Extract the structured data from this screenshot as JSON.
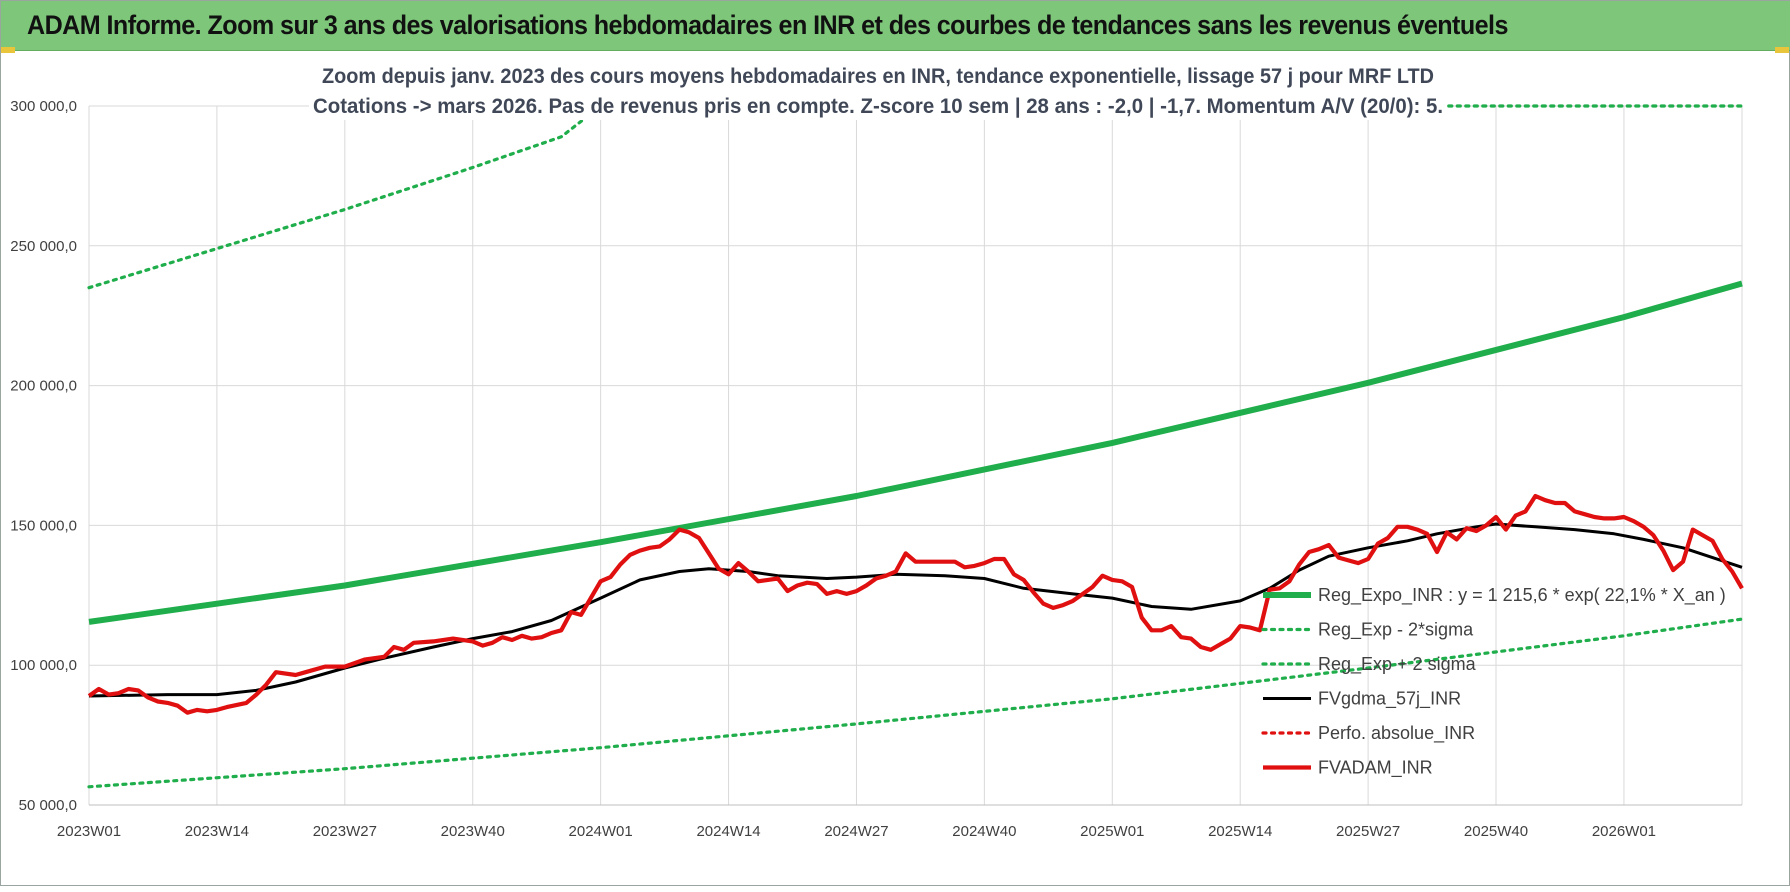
{
  "banner": {
    "title": "ADAM Informe. Zoom sur 3 ans des valorisations hebdomadaires en INR et des courbes de tendances sans les revenus éventuels"
  },
  "colors": {
    "banner_bg": "#7ec77a",
    "reg_expo": "#1fae4b",
    "sigma": "#1fae4b",
    "fvgdma": "#000000",
    "perfo": "#e01010",
    "fvadam": "#e01010",
    "grid": "#d9d9d9",
    "axis_text": "#404040",
    "title_text": "#404858"
  },
  "chart_data": {
    "type": "line",
    "title_lines": [
      "Zoom depuis janv. 2023 des cours moyens hebdomadaires en INR, tendance exponentielle, lissage 57 j pour MRF LTD",
      "Cotations -> mars 2026. Pas de revenus pris en compte. Z-score 10 sem | 28 ans : -2,0 | -1,7. Momentum A/V (20/0): 5."
    ],
    "ylim": [
      50000,
      300000
    ],
    "y_ticks": [
      "50 000,0",
      "100 000,0",
      "150 000,0",
      "200 000,0",
      "250 000,0",
      "300 000,0"
    ],
    "y_tick_values": [
      50000,
      100000,
      150000,
      200000,
      250000,
      300000
    ],
    "x_count": 169,
    "x_ticks": [
      "2023W01",
      "2023W14",
      "2023W27",
      "2023W40",
      "2024W01",
      "2024W14",
      "2024W27",
      "2024W40",
      "2025W01",
      "2025W14",
      "2025W27",
      "2025W40",
      "2026W01"
    ],
    "x_tick_index": [
      0,
      13,
      26,
      39,
      52,
      65,
      78,
      91,
      104,
      117,
      130,
      143,
      156
    ],
    "grid": true,
    "legend_position": "lower-right",
    "series": [
      {
        "name": "Reg_Expo_INR : y = 1 215,6 * exp( 22,1% *  X_an )",
        "style": "solid-thick",
        "color": "#1fae4b",
        "points": [
          [
            0,
            115500
          ],
          [
            26,
            128500
          ],
          [
            52,
            144000
          ],
          [
            78,
            160500
          ],
          [
            104,
            179500
          ],
          [
            130,
            201000
          ],
          [
            156,
            224500
          ],
          [
            168,
            236500
          ]
        ]
      },
      {
        "name": "Reg_Exp - 2*sigma",
        "style": "dotted",
        "color": "#1fae4b",
        "points": [
          [
            0,
            56500
          ],
          [
            26,
            63000
          ],
          [
            52,
            70500
          ],
          [
            78,
            79000
          ],
          [
            104,
            88000
          ],
          [
            130,
            99000
          ],
          [
            156,
            110500
          ],
          [
            168,
            116500
          ]
        ]
      },
      {
        "name": "Reg_Exp + 2 sigma",
        "style": "dotted",
        "color": "#1fae4b",
        "points": [
          [
            0,
            235000
          ],
          [
            13,
            249000
          ],
          [
            26,
            263000
          ],
          [
            39,
            278000
          ],
          [
            48,
            289000
          ],
          [
            52,
            300000
          ],
          [
            168,
            300000
          ]
        ]
      },
      {
        "name": "FVgdma_57j_INR",
        "style": "solid",
        "color": "#000000",
        "points": [
          [
            0,
            89000
          ],
          [
            8,
            89500
          ],
          [
            13,
            89500
          ],
          [
            17,
            91000
          ],
          [
            21,
            94000
          ],
          [
            26,
            99000
          ],
          [
            30,
            102500
          ],
          [
            35,
            106500
          ],
          [
            39,
            109500
          ],
          [
            43,
            112000
          ],
          [
            47,
            116000
          ],
          [
            52,
            124000
          ],
          [
            56,
            130500
          ],
          [
            60,
            133500
          ],
          [
            63,
            134500
          ],
          [
            67,
            133500
          ],
          [
            70,
            132000
          ],
          [
            75,
            131000
          ],
          [
            78,
            131500
          ],
          [
            82,
            132500
          ],
          [
            87,
            132000
          ],
          [
            91,
            131000
          ],
          [
            95,
            127500
          ],
          [
            100,
            125500
          ],
          [
            104,
            124000
          ],
          [
            108,
            121000
          ],
          [
            112,
            120000
          ],
          [
            117,
            123000
          ],
          [
            120,
            127500
          ],
          [
            123,
            134000
          ],
          [
            126,
            139000
          ],
          [
            130,
            142000
          ],
          [
            134,
            144500
          ],
          [
            137,
            147000
          ],
          [
            141,
            149500
          ],
          [
            143,
            150500
          ],
          [
            147,
            149500
          ],
          [
            151,
            148500
          ],
          [
            155,
            147000
          ],
          [
            158,
            145000
          ],
          [
            162,
            142000
          ],
          [
            165,
            138500
          ],
          [
            168,
            135000
          ]
        ]
      },
      {
        "name": "Perfo. absolue_INR",
        "style": "dotted",
        "color": "#e01010",
        "points": []
      },
      {
        "name": "FVADAM_INR",
        "style": "solid-thick",
        "color": "#e01010",
        "points": [
          [
            0,
            89000
          ],
          [
            1,
            91500
          ],
          [
            2,
            89500
          ],
          [
            3,
            90000
          ],
          [
            4,
            91500
          ],
          [
            5,
            91000
          ],
          [
            6,
            88500
          ],
          [
            7,
            87000
          ],
          [
            8,
            86500
          ],
          [
            9,
            85500
          ],
          [
            10,
            83000
          ],
          [
            11,
            84000
          ],
          [
            12,
            83500
          ],
          [
            13,
            84000
          ],
          [
            14,
            85000
          ],
          [
            16,
            86500
          ],
          [
            17,
            89500
          ],
          [
            18,
            93000
          ],
          [
            19,
            97500
          ],
          [
            21,
            96500
          ],
          [
            22,
            97500
          ],
          [
            24,
            99500
          ],
          [
            26,
            99500
          ],
          [
            28,
            102000
          ],
          [
            30,
            103000
          ],
          [
            31,
            106500
          ],
          [
            32,
            105500
          ],
          [
            33,
            108000
          ],
          [
            35,
            108500
          ],
          [
            37,
            109500
          ],
          [
            39,
            108500
          ],
          [
            40,
            107000
          ],
          [
            41,
            108000
          ],
          [
            42,
            110000
          ],
          [
            43,
            109000
          ],
          [
            44,
            110500
          ],
          [
            45,
            109500
          ],
          [
            46,
            110000
          ],
          [
            47,
            111500
          ],
          [
            48,
            112500
          ],
          [
            49,
            119000
          ],
          [
            50,
            118000
          ],
          [
            51,
            124000
          ],
          [
            52,
            130000
          ],
          [
            53,
            131500
          ],
          [
            54,
            136000
          ],
          [
            55,
            139500
          ],
          [
            56,
            141000
          ],
          [
            57,
            142000
          ],
          [
            58,
            142500
          ],
          [
            59,
            145000
          ],
          [
            60,
            148500
          ],
          [
            61,
            147500
          ],
          [
            62,
            145500
          ],
          [
            63,
            140000
          ],
          [
            64,
            134500
          ],
          [
            65,
            132500
          ],
          [
            66,
            136500
          ],
          [
            67,
            133500
          ],
          [
            68,
            130000
          ],
          [
            69,
            130500
          ],
          [
            70,
            131000
          ],
          [
            71,
            126500
          ],
          [
            72,
            128500
          ],
          [
            73,
            129500
          ],
          [
            74,
            129000
          ],
          [
            75,
            125500
          ],
          [
            76,
            126500
          ],
          [
            77,
            125500
          ],
          [
            78,
            126500
          ],
          [
            79,
            128500
          ],
          [
            80,
            131000
          ],
          [
            81,
            132000
          ],
          [
            82,
            133500
          ],
          [
            83,
            140000
          ],
          [
            84,
            137000
          ],
          [
            86,
            137000
          ],
          [
            88,
            137000
          ],
          [
            89,
            135000
          ],
          [
            90,
            135500
          ],
          [
            91,
            136500
          ],
          [
            92,
            138000
          ],
          [
            93,
            138000
          ],
          [
            94,
            132500
          ],
          [
            95,
            130500
          ],
          [
            96,
            126000
          ],
          [
            97,
            122000
          ],
          [
            98,
            120500
          ],
          [
            99,
            121500
          ],
          [
            100,
            123000
          ],
          [
            101,
            125500
          ],
          [
            102,
            128000
          ],
          [
            103,
            132000
          ],
          [
            104,
            130500
          ],
          [
            105,
            130000
          ],
          [
            106,
            128000
          ],
          [
            107,
            117000
          ],
          [
            108,
            112500
          ],
          [
            109,
            112500
          ],
          [
            110,
            114000
          ],
          [
            111,
            110000
          ],
          [
            112,
            109500
          ],
          [
            113,
            106500
          ],
          [
            114,
            105500
          ],
          [
            115,
            107500
          ],
          [
            116,
            109500
          ],
          [
            117,
            114000
          ],
          [
            118,
            113500
          ],
          [
            119,
            112500
          ],
          [
            120,
            127000
          ],
          [
            121,
            127500
          ],
          [
            122,
            130000
          ],
          [
            123,
            136000
          ],
          [
            124,
            140500
          ],
          [
            125,
            141500
          ],
          [
            126,
            143000
          ],
          [
            127,
            138500
          ],
          [
            128,
            137500
          ],
          [
            129,
            136500
          ],
          [
            130,
            138000
          ],
          [
            131,
            143500
          ],
          [
            132,
            145500
          ],
          [
            133,
            149500
          ],
          [
            134,
            149500
          ],
          [
            135,
            148500
          ],
          [
            136,
            147000
          ],
          [
            137,
            140500
          ],
          [
            138,
            147500
          ],
          [
            139,
            145000
          ],
          [
            140,
            149000
          ],
          [
            141,
            148000
          ],
          [
            142,
            150000
          ],
          [
            143,
            153000
          ],
          [
            144,
            148500
          ],
          [
            145,
            153500
          ],
          [
            146,
            155000
          ],
          [
            147,
            160500
          ],
          [
            148,
            159000
          ],
          [
            149,
            158000
          ],
          [
            150,
            158000
          ],
          [
            151,
            155000
          ],
          [
            152,
            154000
          ],
          [
            153,
            153000
          ],
          [
            154,
            152500
          ],
          [
            155,
            152500
          ],
          [
            156,
            153000
          ],
          [
            157,
            151500
          ],
          [
            158,
            149500
          ],
          [
            159,
            146500
          ],
          [
            160,
            141000
          ],
          [
            161,
            134000
          ],
          [
            162,
            137000
          ],
          [
            163,
            148500
          ],
          [
            164,
            146500
          ],
          [
            165,
            144500
          ],
          [
            166,
            138000
          ],
          [
            167,
            133500
          ],
          [
            168,
            127500
          ]
        ]
      }
    ]
  }
}
